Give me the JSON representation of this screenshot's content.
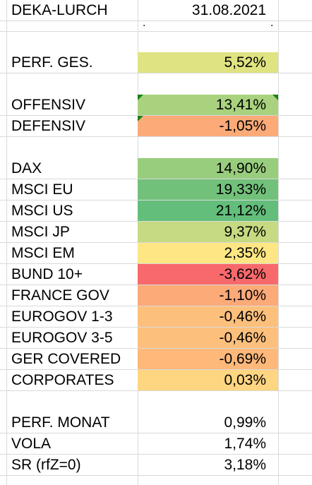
{
  "header": {
    "label": "DEKA-LURCH",
    "date": "31.08.2021"
  },
  "marker_row": {
    "dot1": ".",
    "dot2": "."
  },
  "perf_total": {
    "label": "PERF. GES.",
    "value": "5,52%",
    "color": "#dfe381"
  },
  "segments": [
    {
      "label": "OFFENSIV",
      "value": "13,41%",
      "color": "#a9d27f"
    },
    {
      "label": "DEFENSIV",
      "value": "-1,05%",
      "color": "#fcaa78"
    }
  ],
  "indices": [
    {
      "label": "DAX",
      "value": "14,90%",
      "color": "#98cd7d"
    },
    {
      "label": "MSCI EU",
      "value": "19,33%",
      "color": "#72c17a"
    },
    {
      "label": "MSCI US",
      "value": "21,12%",
      "color": "#63be7b"
    },
    {
      "label": "MSCI JP",
      "value": "9,37%",
      "color": "#c5da81"
    },
    {
      "label": "MSCI EM",
      "value": "2,35%",
      "color": "#fde683"
    },
    {
      "label": "BUND 10+",
      "value": "-3,62%",
      "color": "#f8696b"
    },
    {
      "label": "FRANCE GOV",
      "value": "-1,10%",
      "color": "#fcaa78"
    },
    {
      "label": "EUROGOV 1-3",
      "value": "-0,46%",
      "color": "#fdc07c"
    },
    {
      "label": "EUROGOV 3-5",
      "value": "-0,46%",
      "color": "#fdc07c"
    },
    {
      "label": "GER COVERED",
      "value": "-0,69%",
      "color": "#fdb87a"
    },
    {
      "label": "CORPORATES",
      "value": "0,03%",
      "color": "#fed580"
    }
  ],
  "stats": [
    {
      "label": "PERF. MONAT",
      "value": "0,99%"
    },
    {
      "label": "VOLA",
      "value": "1,74%"
    },
    {
      "label": "SR (rfZ=0)",
      "value": "3,18%"
    }
  ]
}
